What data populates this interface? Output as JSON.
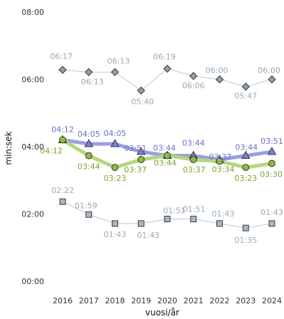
{
  "chart_data": {
    "type": "line",
    "xlabel": "vuosi/år",
    "ylabel": "min:sek",
    "grid": false,
    "x": [
      2016,
      2017,
      2018,
      2019,
      2020,
      2021,
      2022,
      2023,
      2024
    ],
    "x_tick_labels": [
      "2016",
      "2017",
      "2018",
      "2019",
      "2020",
      "2021",
      "2022",
      "2023",
      "2024"
    ],
    "y_unit": "seconds",
    "ylim": [
      0,
      480
    ],
    "y_ticks": [
      0,
      120,
      240,
      360,
      480
    ],
    "y_tick_labels": [
      "00:00",
      "02:00",
      "04:00",
      "06:00",
      "08:00"
    ],
    "series": [
      {
        "marker": "diamond",
        "color": "#8f9fae",
        "line_color": "#c9d1d8",
        "label_color": "#9aa8b6",
        "line_width": "thin",
        "values": [
          377,
          373,
          373,
          340,
          379,
          366,
          360,
          347,
          360
        ],
        "labels": [
          "06:17",
          "06:13",
          "06:13",
          "05:40",
          "06:19",
          "06:06",
          "06:00",
          "05:47",
          "06:00"
        ]
      },
      {
        "marker": "triangle",
        "color": "#7b7fd6",
        "line_color": "#9a9ee2",
        "label_color": "#6b6fcf",
        "line_width": "thick",
        "values": [
          252,
          245,
          245,
          231,
          224,
          224,
          217,
          224,
          231
        ],
        "labels": [
          "04:12",
          "04:05",
          "04:05",
          "03:51",
          "03:44",
          "03:44",
          "03:37",
          "03:44",
          "03:51"
        ]
      },
      {
        "marker": "circle",
        "color": "#8dbb3e",
        "line_color": "#b5d67e",
        "label_color": "#7aa52a",
        "line_width": "thick",
        "values": [
          252,
          224,
          203,
          217,
          224,
          217,
          214,
          203,
          210
        ],
        "labels": [
          "04:12",
          "03:44",
          "03:23",
          "03:37",
          "03:44",
          "03:37",
          "03:34",
          "03:23",
          "03:30"
        ]
      },
      {
        "marker": "square",
        "color": "#a7b5c4",
        "line_color": "#c9d1d8",
        "label_color": "#9aa8b6",
        "line_width": "thin",
        "values": [
          142,
          119,
          103,
          103,
          111,
          111,
          103,
          95,
          103
        ],
        "labels": [
          "02:22",
          "01:59",
          "01:43",
          "01:43",
          "01:51",
          "01:51",
          "01:43",
          "01:35",
          "01:43"
        ]
      }
    ]
  }
}
